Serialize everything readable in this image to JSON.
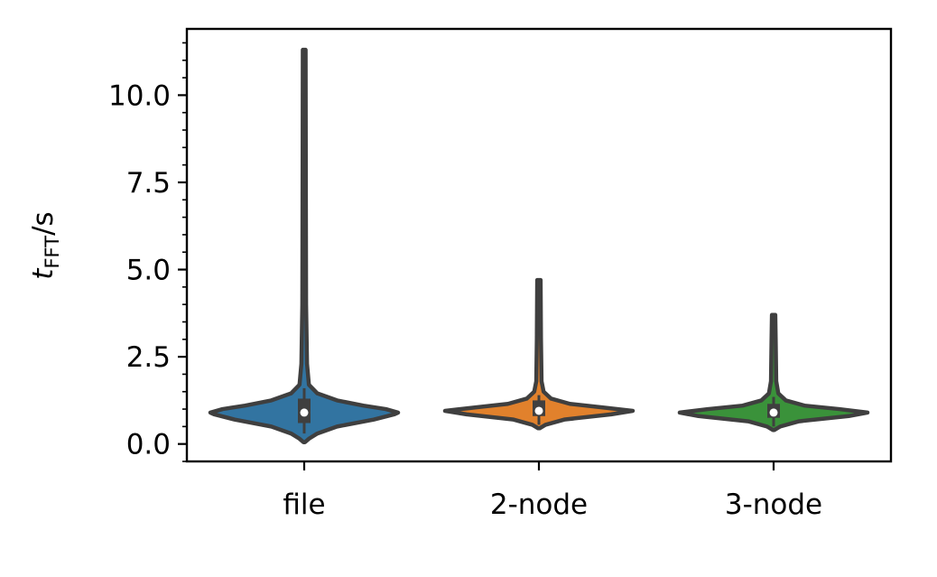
{
  "chart_data": {
    "type": "violin",
    "title": "",
    "xlabel": "",
    "ylabel": {
      "base": "t",
      "subscript": "FFT",
      "suffix": "/s"
    },
    "ylim": [
      -0.5,
      11.9
    ],
    "yticks": [
      0.0,
      2.5,
      5.0,
      7.5,
      10.0
    ],
    "ytick_labels": [
      "0.0",
      "2.5",
      "5.0",
      "7.5",
      "10.0"
    ],
    "categories": [
      "file",
      "2-node",
      "3-node"
    ],
    "series": [
      {
        "category": "file",
        "color": "#3274a1",
        "min": 0.05,
        "max": 11.3,
        "q1": 0.6,
        "median": 0.9,
        "q3": 1.3,
        "whisker_low": 0.3,
        "whisker_high": 1.6,
        "density": [
          [
            0.05,
            0.0
          ],
          [
            0.15,
            0.05
          ],
          [
            0.3,
            0.14
          ],
          [
            0.5,
            0.35
          ],
          [
            0.7,
            0.74
          ],
          [
            0.85,
            0.96
          ],
          [
            0.9,
            1.0
          ],
          [
            1.0,
            0.87
          ],
          [
            1.1,
            0.63
          ],
          [
            1.25,
            0.35
          ],
          [
            1.45,
            0.14
          ],
          [
            1.7,
            0.05
          ],
          [
            2.3,
            0.03
          ],
          [
            4.0,
            0.02
          ],
          [
            8.0,
            0.017
          ],
          [
            11.3,
            0.015
          ]
        ]
      },
      {
        "category": "2-node",
        "color": "#e1812c",
        "min": 0.45,
        "max": 4.7,
        "q1": 0.8,
        "median": 0.95,
        "q3": 1.25,
        "whisker_low": 0.55,
        "whisker_high": 1.4,
        "density": [
          [
            0.45,
            0.0
          ],
          [
            0.55,
            0.07
          ],
          [
            0.7,
            0.27
          ],
          [
            0.85,
            0.77
          ],
          [
            0.95,
            1.0
          ],
          [
            1.05,
            0.67
          ],
          [
            1.15,
            0.33
          ],
          [
            1.3,
            0.13
          ],
          [
            1.5,
            0.05
          ],
          [
            1.8,
            0.028
          ],
          [
            3.0,
            0.022
          ],
          [
            4.7,
            0.018
          ]
        ]
      },
      {
        "category": "3-node",
        "color": "#3a923a",
        "min": 0.4,
        "max": 3.7,
        "q1": 0.75,
        "median": 0.9,
        "q3": 1.15,
        "whisker_low": 0.5,
        "whisker_high": 1.35,
        "density": [
          [
            0.4,
            0.0
          ],
          [
            0.5,
            0.07
          ],
          [
            0.65,
            0.27
          ],
          [
            0.8,
            0.8
          ],
          [
            0.9,
            1.0
          ],
          [
            1.0,
            0.7
          ],
          [
            1.1,
            0.33
          ],
          [
            1.25,
            0.13
          ],
          [
            1.45,
            0.05
          ],
          [
            1.8,
            0.028
          ],
          [
            3.0,
            0.022
          ],
          [
            3.7,
            0.018
          ]
        ]
      }
    ],
    "grid": false,
    "legend": "none"
  }
}
